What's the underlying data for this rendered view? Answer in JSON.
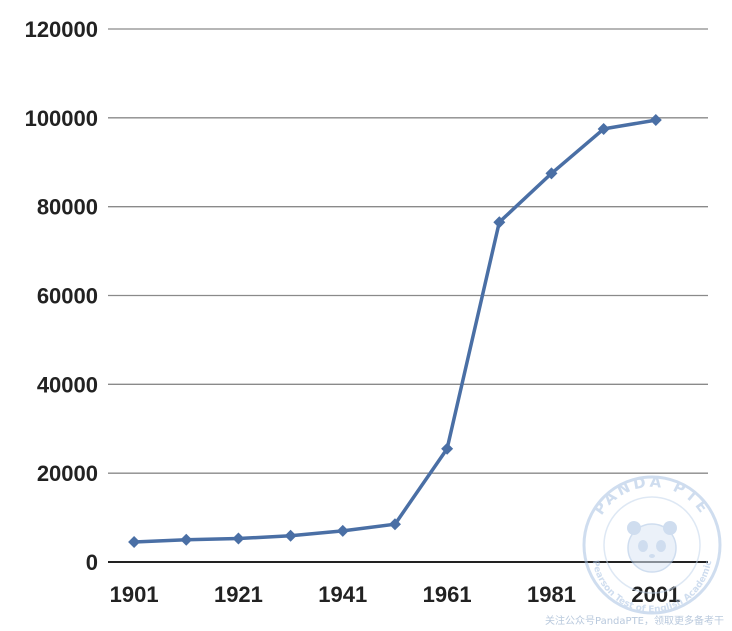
{
  "chart_data": {
    "type": "line",
    "title": "",
    "xlabel": "",
    "ylabel": "",
    "x_tick_labels": [
      "1901",
      "1921",
      "1941",
      "1961",
      "1981",
      "2001"
    ],
    "y_tick_labels": [
      "0",
      "20000",
      "40000",
      "60000",
      "80000",
      "100000",
      "120000"
    ],
    "xlim": [
      1896,
      2011
    ],
    "ylim": [
      0,
      120000
    ],
    "grid": "horizontal",
    "series": [
      {
        "x": [
          1901,
          1911,
          1921,
          1931,
          1941,
          1951,
          1961,
          1971,
          1981,
          1991,
          2001
        ],
        "values": [
          4500,
          5000,
          5300,
          5900,
          7000,
          8500,
          25500,
          76500,
          87500,
          97500,
          99500
        ],
        "color": "#4a6fa5",
        "marker": "diamond"
      }
    ]
  },
  "watermark": {
    "brand": "PANDA PTE",
    "arc_text": "Pearson Test of English Academic",
    "footer_text": "关注公众号PandaPTE，领取更多备考干"
  }
}
